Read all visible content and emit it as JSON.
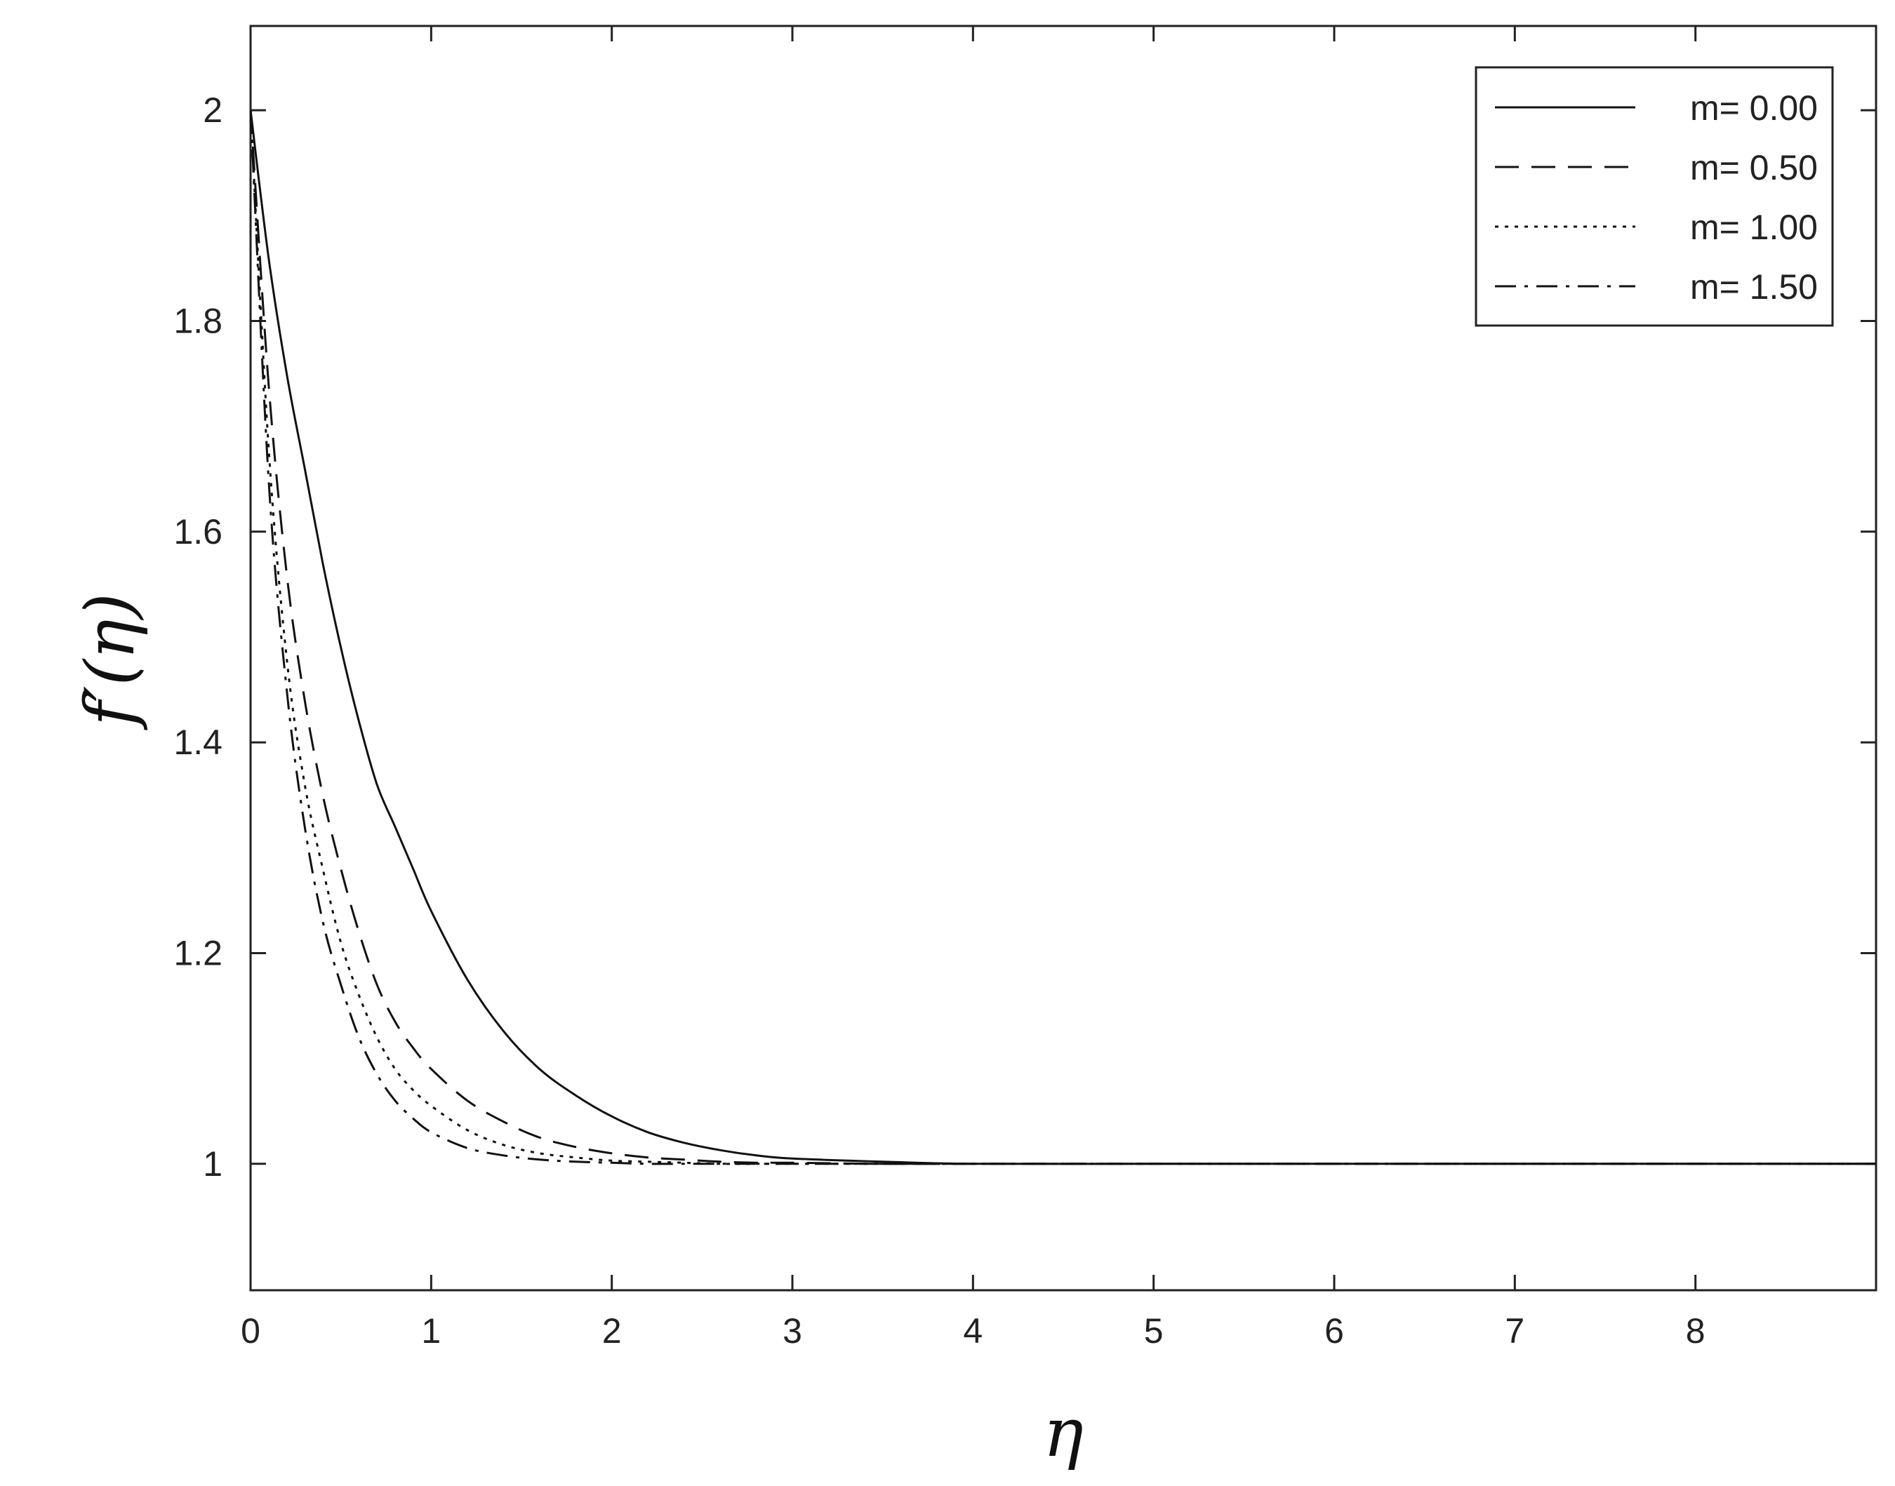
{
  "chart_data": {
    "type": "line",
    "xlabel": "η",
    "ylabel": "f′(η)",
    "xlim": [
      0,
      9
    ],
    "ylim": [
      0.88,
      2.08
    ],
    "xticks": [
      "0",
      "1",
      "2",
      "3",
      "4",
      "5",
      "6",
      "7",
      "8"
    ],
    "yticks": [
      "1",
      "1.2",
      "1.4",
      "1.6",
      "1.8",
      "2"
    ],
    "legend_position": "top-right",
    "grid": false,
    "x": [
      0,
      0.1,
      0.2,
      0.3,
      0.4,
      0.5,
      0.6,
      0.7,
      0.8,
      0.9,
      1.0,
      1.2,
      1.4,
      1.6,
      1.8,
      2.0,
      2.2,
      2.4,
      2.6,
      2.8,
      3.0,
      3.5,
      4.0,
      5.0,
      6.0,
      7.0,
      8.0,
      9.0
    ],
    "series": [
      {
        "name": "m= 0.00",
        "dash": "solid",
        "values": [
          2.0,
          1.86,
          1.75,
          1.66,
          1.57,
          1.49,
          1.42,
          1.36,
          1.32,
          1.28,
          1.24,
          1.175,
          1.126,
          1.09,
          1.065,
          1.045,
          1.03,
          1.02,
          1.013,
          1.008,
          1.005,
          1.002,
          1.0,
          1.0,
          1.0,
          1.0,
          1.0,
          1.0
        ]
      },
      {
        "name": "m= 0.50",
        "dash": "dashed",
        "values": [
          2.0,
          1.74,
          1.56,
          1.44,
          1.35,
          1.28,
          1.22,
          1.17,
          1.135,
          1.11,
          1.09,
          1.06,
          1.04,
          1.025,
          1.016,
          1.01,
          1.006,
          1.004,
          1.002,
          1.001,
          1.001,
          1.0,
          1.0,
          1.0,
          1.0,
          1.0,
          1.0,
          1.0
        ]
      },
      {
        "name": "m= 1.00",
        "dash": "dotted",
        "values": [
          2.0,
          1.68,
          1.48,
          1.36,
          1.28,
          1.21,
          1.16,
          1.12,
          1.09,
          1.07,
          1.055,
          1.032,
          1.018,
          1.01,
          1.006,
          1.003,
          1.002,
          1.001,
          1.0,
          1.0,
          1.0,
          1.0,
          1.0,
          1.0,
          1.0,
          1.0,
          1.0,
          1.0
        ]
      },
      {
        "name": "m= 1.50",
        "dash": "dashdot",
        "values": [
          2.0,
          1.65,
          1.45,
          1.32,
          1.23,
          1.17,
          1.12,
          1.085,
          1.06,
          1.043,
          1.03,
          1.015,
          1.008,
          1.004,
          1.002,
          1.001,
          1.0,
          1.0,
          1.0,
          1.0,
          1.0,
          1.0,
          1.0,
          1.0,
          1.0,
          1.0,
          1.0,
          1.0
        ]
      }
    ]
  }
}
